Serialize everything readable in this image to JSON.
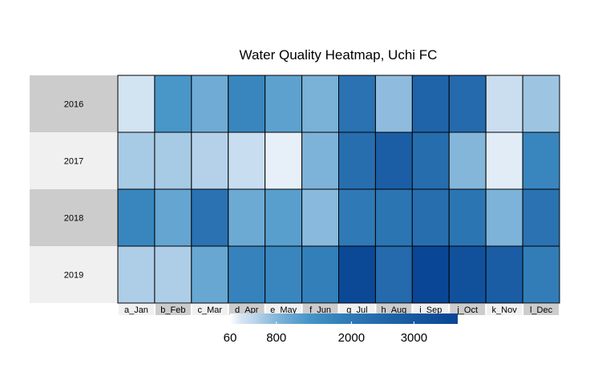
{
  "chart_data": {
    "type": "heatmap",
    "title": "Water Quality Heatmap, Uchi FC",
    "rows": [
      "2016",
      "2017",
      "2018",
      "2019"
    ],
    "columns": [
      "a_Jan",
      "b_Feb",
      "c_Mar",
      "d_Apr",
      "e_May",
      "f_Jun",
      "g_Jul",
      "h_Aug",
      "i_Sep",
      "j_Oct",
      "k_Nov",
      "l_Dec"
    ],
    "values": [
      [
        260,
        1300,
        960,
        1650,
        1120,
        880,
        2200,
        720,
        2620,
        2450,
        330,
        620
      ],
      [
        560,
        560,
        480,
        360,
        120,
        840,
        2300,
        2800,
        2350,
        800,
        150,
        1650
      ],
      [
        1650,
        1050,
        2200,
        980,
        1150,
        760,
        2000,
        2100,
        2300,
        2100,
        850,
        2200
      ],
      [
        520,
        520,
        1020,
        1750,
        1650,
        1850,
        3550,
        2450,
        3650,
        3250,
        2850,
        1900
      ]
    ],
    "colorbar": {
      "ticks": [
        60,
        800,
        2000,
        3000
      ],
      "range": [
        60,
        3700
      ],
      "color_low": "#ffffff",
      "color_high": "#084594"
    },
    "colors": {
      "row_band_odd": "#cccccc",
      "row_band_even": "#f0f0f0",
      "col_label_odd": "#f0f0f0",
      "col_label_even": "#cccccc"
    }
  }
}
